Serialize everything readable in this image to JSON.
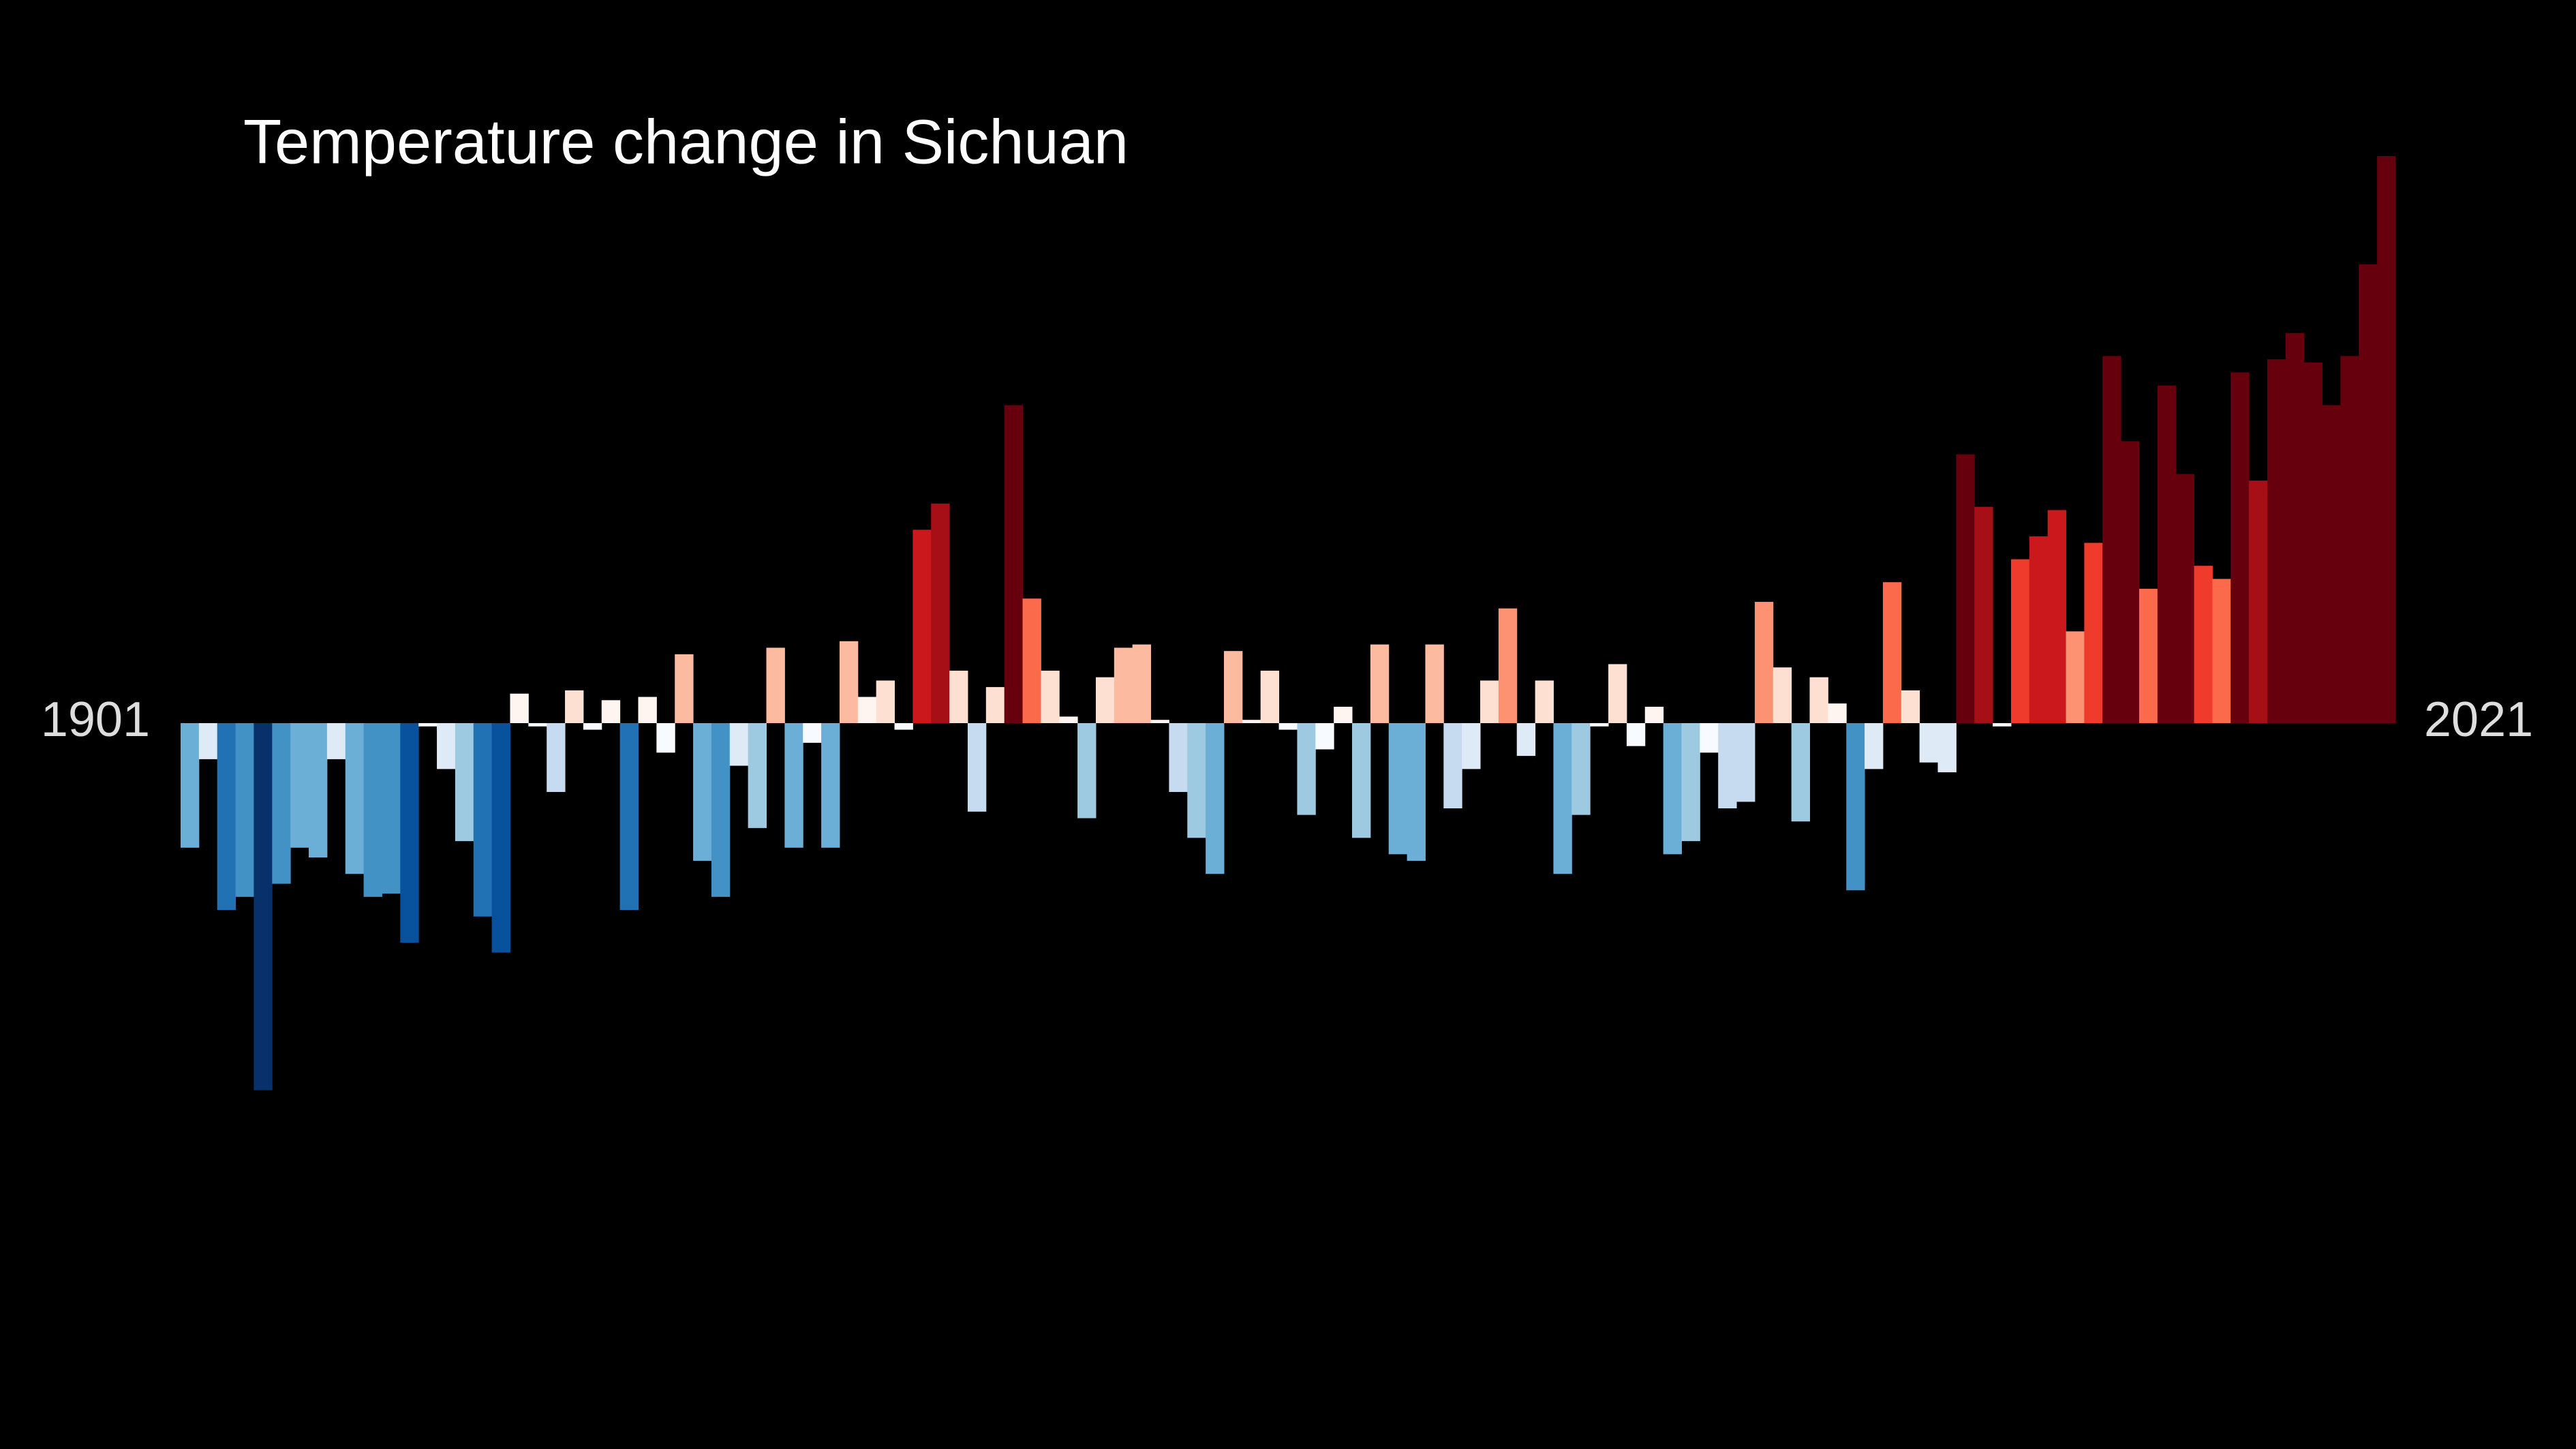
{
  "chart_data": {
    "type": "bar",
    "title": "Temperature change in Sichuan",
    "categories": [
      1901,
      null,
      null,
      null,
      null,
      null,
      null,
      null,
      null,
      null,
      null,
      null,
      null,
      null,
      null,
      null,
      null,
      null,
      null,
      null,
      null,
      null,
      null,
      null,
      null,
      null,
      null,
      null,
      null,
      null,
      null,
      null,
      null,
      null,
      null,
      null,
      null,
      null,
      null,
      null,
      null,
      null,
      null,
      null,
      null,
      null,
      null,
      null,
      null,
      null,
      null,
      null,
      null,
      null,
      null,
      null,
      null,
      null,
      null,
      null,
      null,
      null,
      null,
      null,
      null,
      null,
      null,
      null,
      null,
      null,
      null,
      null,
      null,
      null,
      null,
      null,
      null,
      null,
      null,
      null,
      null,
      null,
      null,
      null,
      null,
      null,
      null,
      null,
      null,
      null,
      null,
      null,
      null,
      null,
      null,
      null,
      null,
      null,
      null,
      null,
      null,
      null,
      null,
      null,
      null,
      null,
      null,
      null,
      null,
      null,
      null,
      null,
      null,
      null,
      null,
      null,
      null,
      null,
      null,
      null,
      2021
    ],
    "values": [
      -0.38,
      -0.11,
      -0.57,
      -0.53,
      -1.12,
      -0.49,
      -0.38,
      -0.41,
      -0.11,
      -0.46,
      -0.53,
      -0.52,
      -0.67,
      -0.01,
      -0.14,
      -0.36,
      -0.59,
      -0.7,
      0.09,
      -0.01,
      -0.21,
      0.1,
      -0.02,
      0.07,
      -0.57,
      0.08,
      -0.09,
      0.21,
      -0.42,
      -0.53,
      -0.13,
      -0.32,
      0.23,
      -0.38,
      -0.06,
      -0.38,
      0.25,
      0.08,
      0.13,
      -0.02,
      0.59,
      0.67,
      0.16,
      -0.27,
      0.11,
      0.97,
      0.38,
      0.16,
      0.02,
      -0.29,
      0.14,
      0.23,
      0.24,
      0.01,
      -0.21,
      -0.35,
      -0.46,
      0.22,
      0.01,
      0.16,
      -0.02,
      -0.28,
      -0.08,
      0.05,
      -0.35,
      0.24,
      -0.4,
      -0.42,
      0.24,
      -0.26,
      -0.14,
      0.13,
      0.35,
      -0.1,
      0.13,
      -0.46,
      -0.28,
      -0.01,
      0.18,
      -0.07,
      0.05,
      -0.4,
      -0.36,
      -0.09,
      -0.26,
      -0.24,
      0.37,
      0.17,
      -0.3,
      0.14,
      0.06,
      -0.51,
      -0.14,
      0.43,
      0.1,
      -0.12,
      -0.15,
      0.82,
      0.66,
      -0.01,
      0.5,
      0.57,
      0.65,
      0.28,
      0.55,
      1.12,
      0.86,
      0.41,
      1.03,
      0.76,
      0.48,
      0.44,
      1.07,
      0.74,
      1.11,
      1.19,
      1.1,
      0.97,
      1.12,
      1.4,
      1.73
    ]
  }
}
